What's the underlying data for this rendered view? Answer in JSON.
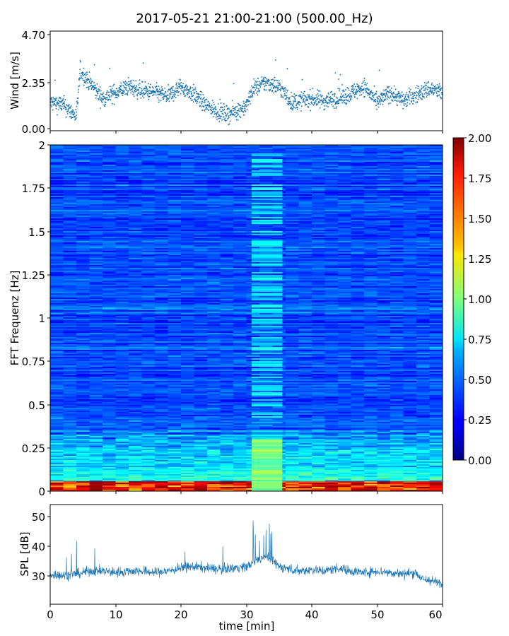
{
  "title": "2017-05-21 21:00-21:00 (500.00_Hz)",
  "chart_data": [
    {
      "type": "scatter",
      "name": "wind",
      "ylabel": "Wind [m/s]",
      "ylim": [
        0.0,
        4.7
      ],
      "yticks": [
        "0.00",
        "2.35",
        "4.70"
      ],
      "xlim": [
        0,
        60
      ],
      "color": "#1f77b4",
      "profile": {
        "t": [
          0,
          2,
          3,
          4,
          4.6,
          5.5,
          8,
          10,
          12,
          14,
          16,
          18,
          20,
          22,
          24,
          27,
          30,
          31,
          33,
          35,
          37,
          40,
          42,
          45,
          48,
          50,
          52,
          54,
          56,
          58,
          60
        ],
        "wind": [
          1.3,
          1.2,
          0.9,
          0.6,
          2.9,
          2.5,
          1.5,
          1.8,
          2.1,
          1.9,
          1.8,
          1.6,
          2.1,
          1.7,
          1.1,
          0.7,
          1.1,
          2.0,
          2.3,
          2.1,
          1.3,
          1.5,
          1.4,
          1.6,
          2.1,
          1.3,
          1.8,
          1.4,
          1.7,
          2.0,
          1.8
        ]
      }
    },
    {
      "type": "heatmap",
      "name": "spectrogram",
      "ylabel": "FFT Frequenz [Hz]",
      "ylim": [
        0,
        2
      ],
      "yticks": [
        "0",
        "0.25",
        "0.5",
        "0.75",
        "1",
        "1.25",
        "1.5",
        "1.75",
        "2"
      ],
      "xlim": [
        0,
        60
      ],
      "colormap": "jet",
      "colorbar": {
        "range": [
          0.0,
          2.0
        ],
        "ticks": [
          "0.00",
          "0.25",
          "0.50",
          "0.75",
          "1.00",
          "1.25",
          "1.50",
          "1.75",
          "2.00"
        ]
      },
      "highlight_band_min": [
        30.8,
        35.5
      ]
    },
    {
      "type": "line",
      "name": "spl",
      "ylabel": "SPL [dB]",
      "xlabel": "time [min]",
      "ylim": [
        21,
        54
      ],
      "yticks": [
        "30",
        "40",
        "50"
      ],
      "xlim": [
        0,
        60
      ],
      "xticks": [
        "0",
        "10",
        "20",
        "30",
        "40",
        "50",
        "60"
      ],
      "color": "#1f77b4",
      "profile": {
        "t": [
          0,
          2,
          4,
          6,
          8,
          10,
          12,
          14,
          16,
          18,
          20,
          22,
          24,
          26,
          28,
          30,
          31,
          32,
          33,
          34,
          35,
          36,
          38,
          40,
          42,
          44,
          46,
          48,
          50,
          52,
          54,
          56,
          57,
          58,
          60
        ],
        "spl": [
          31,
          30.5,
          31,
          32,
          32,
          31.5,
          32,
          32,
          31.5,
          32,
          33,
          33.5,
          33,
          32.5,
          33,
          33.5,
          34.5,
          36,
          37,
          35.5,
          33.5,
          33,
          32,
          32.5,
          32,
          33,
          32,
          31.5,
          32,
          31.5,
          31,
          31.5,
          29,
          29,
          27.5
        ]
      }
    }
  ]
}
